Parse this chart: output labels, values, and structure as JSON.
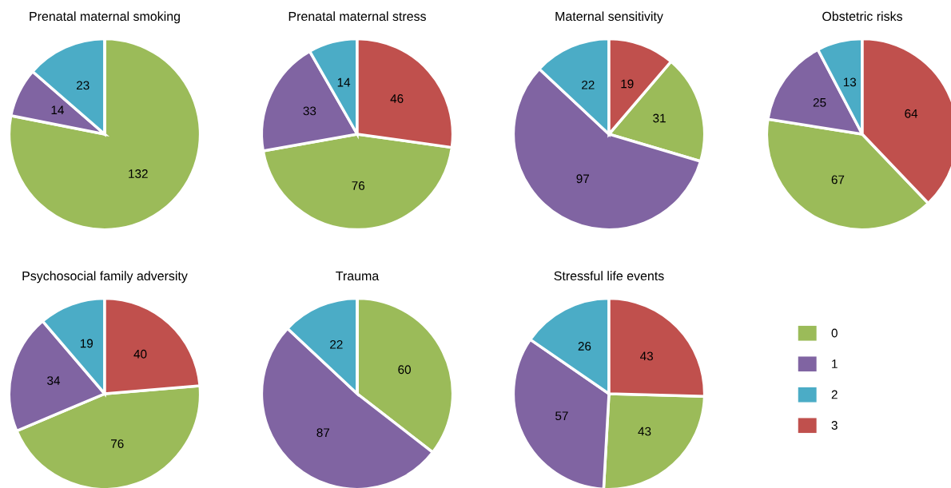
{
  "chart_data": [
    {
      "type": "pie",
      "title": "Prenatal maternal smoking",
      "categories": [
        "0",
        "1",
        "2",
        "3"
      ],
      "values": [
        132,
        14,
        23,
        0
      ],
      "colors": [
        "#9bbb59",
        "#8064a2",
        "#4bacc6",
        "#c0504d"
      ],
      "data_labels": true,
      "legend": "right"
    },
    {
      "type": "pie",
      "title": "Prenatal maternal stress",
      "values": [
        76,
        33,
        14,
        46
      ],
      "colors": [
        "#9bbb59",
        "#8064a2",
        "#4bacc6",
        "#c0504d"
      ],
      "data_labels": true
    },
    {
      "type": "pie",
      "title": "Maternal sensitivity",
      "values": [
        31,
        97,
        22,
        19
      ],
      "colors": [
        "#9bbb59",
        "#8064a2",
        "#4bacc6",
        "#c0504d"
      ],
      "data_labels": true
    },
    {
      "type": "pie",
      "title": "Obstetric risks",
      "values": [
        67,
        25,
        13,
        64
      ],
      "colors": [
        "#9bbb59",
        "#8064a2",
        "#4bacc6",
        "#c0504d"
      ],
      "data_labels": true
    },
    {
      "type": "pie",
      "title": "Psychosocial family adversity",
      "values": [
        76,
        34,
        19,
        40
      ],
      "colors": [
        "#9bbb59",
        "#8064a2",
        "#4bacc6",
        "#c0504d"
      ],
      "data_labels": true
    },
    {
      "type": "pie",
      "title": "Trauma",
      "values": [
        60,
        87,
        22,
        0
      ],
      "colors": [
        "#9bbb59",
        "#8064a2",
        "#4bacc6",
        "#c0504d"
      ],
      "data_labels": true
    },
    {
      "type": "pie",
      "title": "Stressful life events",
      "values": [
        43,
        57,
        26,
        43
      ],
      "colors": [
        "#9bbb59",
        "#8064a2",
        "#4bacc6",
        "#c0504d"
      ],
      "data_labels": true
    }
  ]
}
